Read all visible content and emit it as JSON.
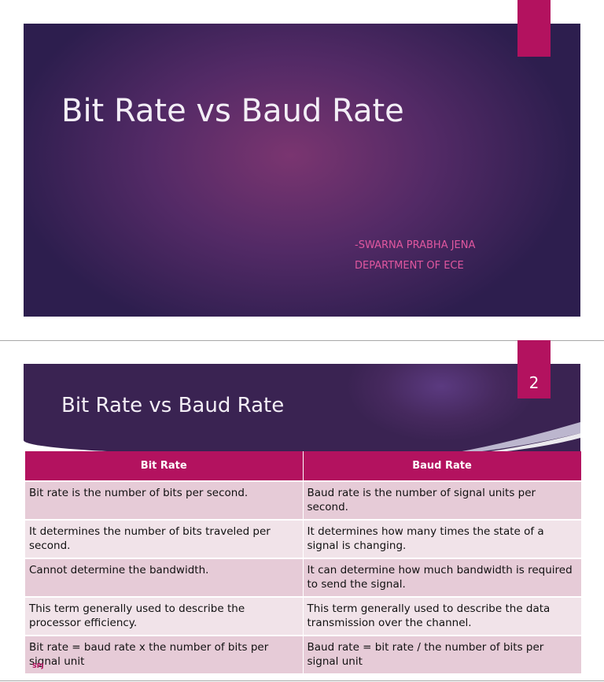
{
  "slide1": {
    "title": "Bit Rate vs Baud Rate",
    "author": "-SWARNA PRABHA JENA",
    "department": "DEPARTMENT OF ECE"
  },
  "slide2": {
    "page_number": "2",
    "title": "Bit Rate vs Baud Rate",
    "table": {
      "headers": [
        "Bit Rate",
        "Baud Rate"
      ],
      "rows": [
        [
          "Bit rate is the number of bits per second.",
          "Baud rate is the number of signal units per second."
        ],
        [
          "It determines the number of bits traveled per second.",
          "It determines how many times the state of a signal is changing."
        ],
        [
          "Cannot determine the bandwidth.",
          "It can determine how much bandwidth is required to send the signal."
        ],
        [
          "This term generally used to describe the processor efficiency.",
          "This term generally used to describe the data transmission over the channel."
        ],
        [
          "Bit rate = baud rate x the number of bits per signal unit",
          "Baud rate = bit rate / the number of bits per signal unit"
        ]
      ]
    },
    "footer_mark": "SPJ"
  },
  "colors": {
    "accent": "#b3125f",
    "slide_bg": "#532a66",
    "row_dark": "#e6cbd7",
    "row_light": "#f1e3e9"
  }
}
